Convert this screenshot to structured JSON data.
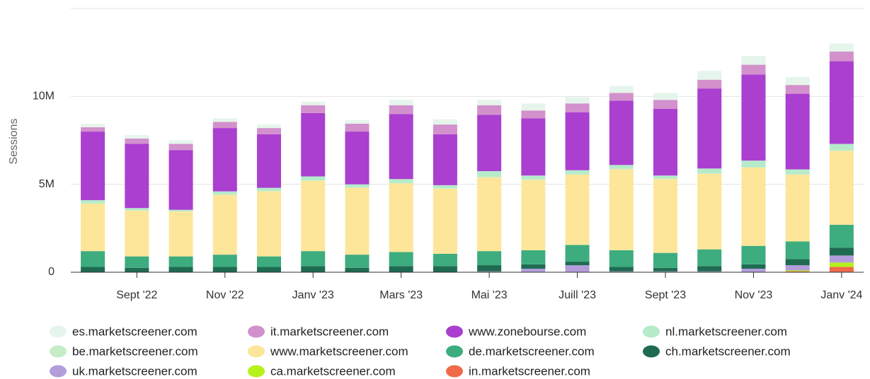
{
  "chart_data": {
    "type": "stacked_bar",
    "y_label": "Sessions",
    "categories": [
      null,
      "Sept '22",
      null,
      "Nov '22",
      null,
      "Janv '23",
      null,
      "Mars '23",
      null,
      "Mai '23",
      null,
      "Juill '23",
      null,
      "Sept '23",
      null,
      "Nov '23",
      null,
      "Janv '24"
    ],
    "ylim": [
      0,
      15000000
    ],
    "yticks": [
      0,
      {
        "value": 5000000,
        "label": "5M"
      },
      {
        "value": 10000000,
        "label": "10M"
      }
    ],
    "grid": true,
    "series": [
      {
        "name": "es.marketscreener.com",
        "color": "#e6f5eb",
        "values": [
          200000,
          200000,
          200000,
          200000,
          200000,
          200000,
          200000,
          300000,
          300000,
          300000,
          400000,
          350000,
          400000,
          400000,
          500000,
          500000,
          450000,
          450000
        ]
      },
      {
        "name": "it.marketscreener.com",
        "color": "#d291cc",
        "values": [
          250000,
          300000,
          350000,
          350000,
          350000,
          450000,
          450000,
          500000,
          550000,
          550000,
          450000,
          500000,
          450000,
          500000,
          500000,
          550000,
          500000,
          550000
        ]
      },
      {
        "name": "www.zonebourse.com",
        "color": "#aa3fd0",
        "values": [
          3900000,
          3650000,
          3400000,
          3600000,
          3050000,
          3600000,
          3000000,
          3700000,
          2900000,
          3200000,
          3250000,
          3300000,
          3650000,
          3800000,
          4550000,
          4900000,
          4300000,
          4700000
        ]
      },
      {
        "name": "nl.marketscreener.com",
        "color": "#b5ebc9",
        "values": [
          170000,
          120000,
          70000,
          170000,
          170000,
          220000,
          170000,
          220000,
          170000,
          320000,
          220000,
          220000,
          220000,
          170000,
          270000,
          370000,
          270000,
          370000
        ]
      },
      {
        "name": "be.marketscreener.com",
        "color": "#c6ecc6",
        "values": [
          30000,
          30000,
          30000,
          30000,
          30000,
          30000,
          30000,
          30000,
          30000,
          30000,
          30000,
          30000,
          30000,
          30000,
          30000,
          30000,
          30000,
          30000
        ]
      },
      {
        "name": "www.marketscreener.com",
        "color": "#fde699",
        "values": [
          2700000,
          2600000,
          2550000,
          3400000,
          3700000,
          4000000,
          3800000,
          3900000,
          3700000,
          4200000,
          4000000,
          4000000,
          4600000,
          4200000,
          4300000,
          4450000,
          3800000,
          4200000
        ]
      },
      {
        "name": "de.marketscreener.com",
        "color": "#3dac7f",
        "values": [
          900000,
          650000,
          600000,
          700000,
          600000,
          850000,
          750000,
          800000,
          700000,
          800000,
          800000,
          950000,
          950000,
          850000,
          950000,
          1050000,
          1000000,
          1300000
        ]
      },
      {
        "name": "ch.marketscreener.com",
        "color": "#1e6b52",
        "values": [
          300000,
          250000,
          300000,
          300000,
          300000,
          350000,
          250000,
          350000,
          350000,
          350000,
          250000,
          200000,
          250000,
          200000,
          300000,
          250000,
          350000,
          450000
        ]
      },
      {
        "name": "uk.marketscreener.com",
        "color": "#b39ddb",
        "values": [
          0,
          0,
          0,
          0,
          0,
          0,
          0,
          0,
          0,
          50000,
          200000,
          400000,
          50000,
          50000,
          50000,
          200000,
          300000,
          400000
        ]
      },
      {
        "name": "ca.marketscreener.com",
        "color": "#b5f21a",
        "values": [
          0,
          0,
          0,
          0,
          0,
          0,
          0,
          0,
          0,
          0,
          0,
          0,
          0,
          0,
          0,
          0,
          50000,
          250000
        ]
      },
      {
        "name": "in.marketscreener.com",
        "color": "#f06a4a",
        "values": [
          0,
          0,
          0,
          0,
          0,
          0,
          0,
          0,
          0,
          0,
          0,
          0,
          0,
          0,
          0,
          0,
          50000,
          300000
        ]
      }
    ]
  }
}
